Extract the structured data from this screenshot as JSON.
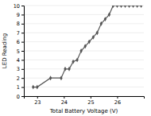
{
  "chart_data": {
    "type": "line",
    "x": [
      22.85,
      23.0,
      23.5,
      23.9,
      24.05,
      24.2,
      24.35,
      24.5,
      24.65,
      24.8,
      24.95,
      25.1,
      25.25,
      25.4,
      25.55,
      25.7,
      25.85,
      26.0,
      26.15,
      26.3,
      26.45,
      26.6,
      26.75,
      26.9
    ],
    "values": [
      1,
      1,
      2,
      2,
      3,
      3,
      3.8,
      4,
      5,
      5.5,
      6,
      6.5,
      7,
      8,
      8.5,
      9,
      10,
      10,
      10,
      10,
      10,
      10,
      10,
      10
    ],
    "xlim": [
      22.5,
      27.0
    ],
    "ylim": [
      0,
      10
    ],
    "xticks": [
      23,
      24,
      25,
      26
    ],
    "yticks": [
      0,
      1,
      2,
      3,
      4,
      5,
      6,
      7,
      8,
      9,
      10
    ],
    "xlabel": "Total Battery Voltage (V)",
    "ylabel": "LED Reading",
    "marker": "diamond",
    "color": "#555555",
    "grid": "y"
  }
}
